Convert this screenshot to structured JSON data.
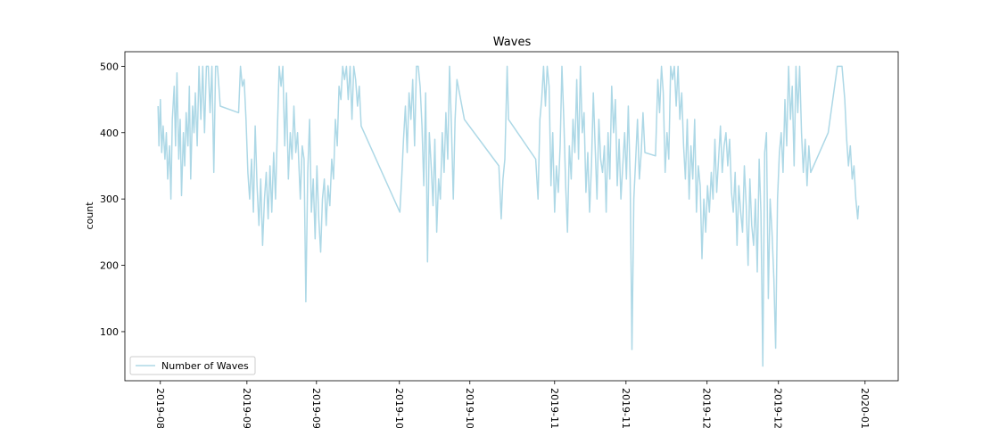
{
  "chart_data": {
    "type": "line",
    "title": "Waves",
    "ylabel": "count",
    "x": [
      -0.5,
      -0.3,
      0,
      0.3,
      0.6,
      1,
      1.3,
      1.6,
      2,
      2.3,
      2.6,
      3,
      3.3,
      3.6,
      4,
      4.3,
      4.6,
      5,
      5.3,
      5.6,
      6,
      6.3,
      6.6,
      7,
      7.3,
      7.6,
      8,
      8.4,
      8.8,
      9.2,
      9.6,
      10,
      10.4,
      10.8,
      11.2,
      11.6,
      12,
      12.4,
      12.8,
      13,
      17,
      17.4,
      17.8,
      18.2,
      18.6,
      19,
      19.4,
      19.8,
      20.2,
      20.6,
      21,
      21.4,
      21.8,
      22.2,
      22.6,
      23,
      23.4,
      23.8,
      24.2,
      24.6,
      25,
      25.4,
      25.8,
      26.2,
      26.6,
      27,
      27.4,
      27.8,
      28.2,
      28.6,
      29,
      29.4,
      29.8,
      30.4,
      30.8,
      31.2,
      31.6,
      32,
      32.4,
      32.8,
      33.2,
      33.6,
      34,
      34.4,
      34.8,
      35.2,
      35.6,
      36,
      36.4,
      36.8,
      37.2,
      37.6,
      38,
      38.4,
      38.8,
      39.2,
      39.6,
      40,
      40.4,
      40.8,
      41.2,
      41.6,
      42,
      42.4,
      42.8,
      43.2,
      43.6,
      52,
      52.4,
      52.8,
      53.2,
      53.6,
      54,
      54.4,
      54.8,
      55.2,
      55.6,
      56,
      56.4,
      56.8,
      57.2,
      57.6,
      58,
      58.4,
      58.8,
      59.2,
      59.6,
      60,
      60.4,
      60.8,
      61.2,
      61.6,
      62,
      62.4,
      62.8,
      63.2,
      63.6,
      64,
      64.4,
      66,
      73.5,
      74,
      74.4,
      74.8,
      75.3,
      75.6,
      81.5,
      82,
      82.4,
      82.8,
      83.2,
      83.6,
      84,
      84.4,
      84.8,
      85.2,
      85.6,
      86,
      86.4,
      86.8,
      87.2,
      87.6,
      88,
      88.4,
      88.8,
      89.2,
      89.6,
      90,
      90.4,
      90.8,
      91.2,
      91.6,
      92,
      92.4,
      92.8,
      93.2,
      93.6,
      94,
      94.4,
      94.8,
      95.2,
      95.6,
      96,
      96.4,
      96.8,
      97.2,
      97.6,
      98,
      98.4,
      98.8,
      99.2,
      99.6,
      100,
      100.4,
      100.8,
      101.2,
      101.6,
      102,
      102.4,
      102.8,
      103.2,
      103.6,
      104,
      104.4,
      104.8,
      105.2,
      107.5,
      108,
      108.4,
      108.8,
      109.2,
      109.6,
      110,
      110.4,
      110.8,
      111.2,
      111.6,
      112,
      112.4,
      112.8,
      113.2,
      113.6,
      114,
      114.4,
      114.8,
      115.2,
      115.6,
      116,
      116.4,
      116.8,
      117.2,
      117.6,
      118,
      118.4,
      118.8,
      119.2,
      119.6,
      120,
      120.4,
      120.8,
      121.2,
      121.6,
      122,
      122.4,
      122.8,
      123.2,
      123.6,
      124,
      124.4,
      124.8,
      125.2,
      125.6,
      126,
      126.4,
      126.8,
      127.2,
      127.6,
      128,
      128.4,
      128.8,
      129.2,
      129.6,
      130,
      130.4,
      130.8,
      131.2,
      131.6,
      132,
      132.4,
      132.8,
      133.2,
      133.6,
      134,
      134.4,
      134.8,
      135.2,
      135.6,
      136,
      136.4,
      136.8,
      137.2,
      137.6,
      138,
      138.4,
      138.8,
      139.2,
      139.6,
      140,
      140.4,
      140.8,
      141.2,
      145,
      147,
      148,
      148.6,
      149,
      149.4,
      149.8,
      150.2,
      150.6,
      151,
      151.4,
      151.6
    ],
    "series": [
      {
        "name": "Number of Waves",
        "color": "#add8e6",
        "values": [
          440,
          380,
          450,
          370,
          410,
          360,
          400,
          330,
          380,
          300,
          420,
          470,
          380,
          490,
          360,
          420,
          305,
          400,
          350,
          430,
          380,
          470,
          330,
          440,
          400,
          460,
          380,
          500,
          420,
          500,
          400,
          500,
          500,
          430,
          500,
          340,
          500,
          500,
          460,
          440,
          430,
          500,
          470,
          480,
          420,
          340,
          300,
          360,
          280,
          410,
          320,
          260,
          330,
          230,
          300,
          340,
          270,
          350,
          280,
          370,
          300,
          400,
          500,
          470,
          500,
          380,
          460,
          330,
          400,
          360,
          440,
          370,
          400,
          300,
          380,
          360,
          145,
          340,
          420,
          280,
          330,
          240,
          350,
          270,
          220,
          300,
          330,
          260,
          320,
          290,
          360,
          330,
          420,
          380,
          470,
          450,
          500,
          480,
          500,
          450,
          500,
          420,
          500,
          480,
          440,
          470,
          410,
          280,
          330,
          390,
          440,
          370,
          460,
          420,
          480,
          380,
          500,
          500,
          470,
          410,
          320,
          460,
          205,
          400,
          350,
          290,
          390,
          250,
          330,
          300,
          400,
          340,
          430,
          360,
          500,
          410,
          300,
          420,
          480,
          420,
          350,
          270,
          330,
          360,
          500,
          420,
          360,
          300,
          420,
          450,
          500,
          440,
          500,
          470,
          320,
          400,
          280,
          350,
          310,
          380,
          500,
          420,
          320,
          250,
          380,
          330,
          420,
          370,
          480,
          360,
          500,
          400,
          430,
          310,
          370,
          280,
          350,
          460,
          380,
          300,
          420,
          360,
          340,
          380,
          280,
          400,
          330,
          470,
          400,
          450,
          320,
          390,
          300,
          350,
          400,
          330,
          440,
          330,
          73,
          300,
          360,
          420,
          330,
          370,
          430,
          370,
          365,
          480,
          430,
          500,
          460,
          340,
          400,
          360,
          500,
          480,
          500,
          440,
          500,
          420,
          460,
          380,
          330,
          420,
          300,
          380,
          330,
          420,
          280,
          350,
          320,
          210,
          300,
          250,
          320,
          280,
          340,
          300,
          390,
          310,
          360,
          410,
          340,
          380,
          400,
          350,
          390,
          310,
          280,
          340,
          230,
          320,
          280,
          250,
          350,
          290,
          200,
          330,
          260,
          230,
          300,
          190,
          360,
          280,
          48,
          370,
          400,
          150,
          300,
          250,
          180,
          75,
          300,
          370,
          400,
          340,
          450,
          380,
          500,
          420,
          470,
          350,
          500,
          430,
          500,
          400,
          340,
          390,
          320,
          380,
          340,
          400,
          500,
          500,
          450,
          390,
          350,
          380,
          330,
          350,
          300,
          270,
          290
        ]
      }
    ],
    "xlim": [
      -7.7,
      160.2
    ],
    "ylim": [
      26,
      522
    ],
    "xticks": [
      {
        "value": 0,
        "label": "2019-08"
      },
      {
        "value": 18.8,
        "label": "2019-09"
      },
      {
        "value": 33.9,
        "label": "2019-09"
      },
      {
        "value": 51.9,
        "label": "2019-10"
      },
      {
        "value": 67.2,
        "label": "2019-10"
      },
      {
        "value": 85.6,
        "label": "2019-11"
      },
      {
        "value": 101.1,
        "label": "2019-11"
      },
      {
        "value": 118.7,
        "label": "2019-12"
      },
      {
        "value": 134.2,
        "label": "2019-12"
      },
      {
        "value": 153,
        "label": "2020-01"
      }
    ],
    "yticks": [
      100,
      200,
      300,
      400,
      500
    ],
    "grid": false,
    "legend": "lower left"
  }
}
